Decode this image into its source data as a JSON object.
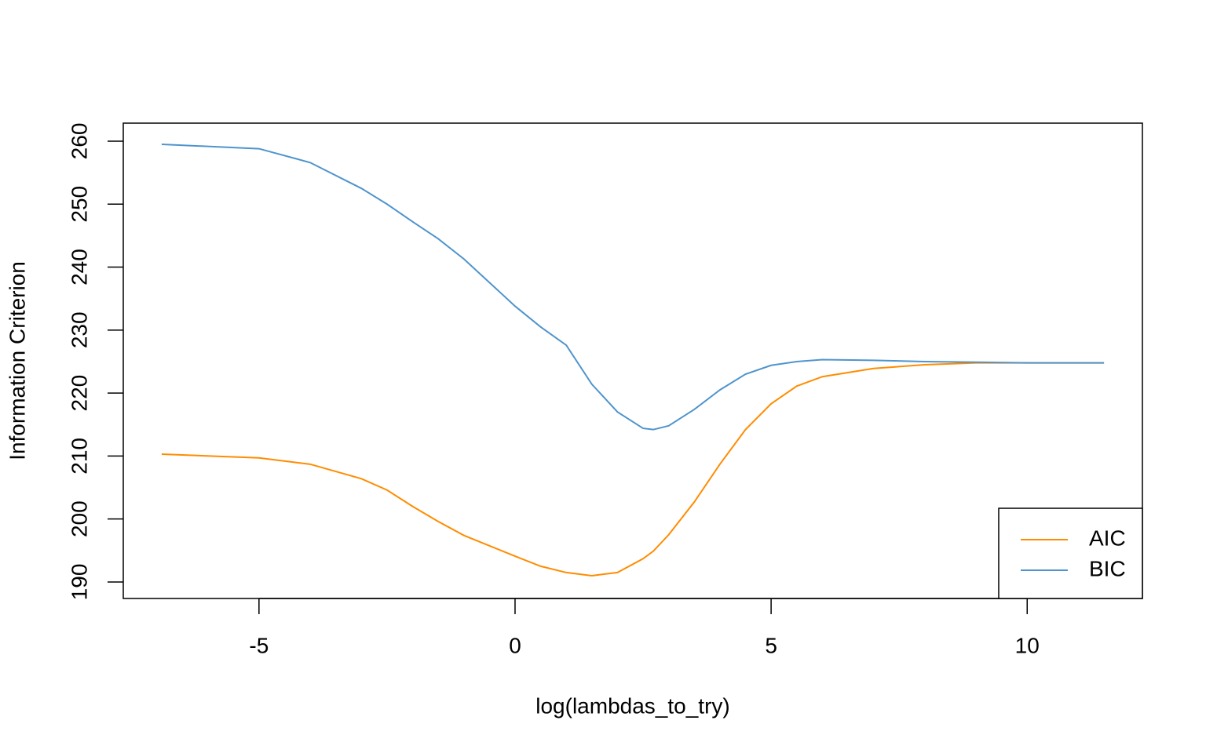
{
  "chart_data": {
    "type": "line",
    "x_label": "log(lambdas_to_try)",
    "y_label": "Information Criterion",
    "x": [
      -6.9,
      -5,
      -4,
      -3,
      -2.5,
      -2,
      -1.5,
      -1,
      0,
      0.5,
      1,
      1.5,
      2,
      2.5,
      2.7,
      3,
      3.5,
      4,
      4.5,
      5,
      5.5,
      6,
      7,
      8,
      9,
      10,
      11.5
    ],
    "series": [
      {
        "name": "AIC",
        "color": "#ff8c00",
        "values": [
          210.3,
          209.7,
          208.7,
          206.4,
          204.6,
          202,
          199.6,
          197.4,
          194.1,
          192.5,
          191.5,
          191,
          191.5,
          193.7,
          194.9,
          197.5,
          202.7,
          208.7,
          214.2,
          218.3,
          221.1,
          222.6,
          223.9,
          224.5,
          224.8,
          224.8,
          224.8
        ]
      },
      {
        "name": "BIC",
        "color": "#4f94cd",
        "values": [
          259.5,
          258.8,
          256.6,
          252.5,
          250,
          247.2,
          244.5,
          241.3,
          233.8,
          230.5,
          227.6,
          221.4,
          217,
          214.4,
          214.2,
          214.8,
          217.4,
          220.5,
          223,
          224.4,
          225,
          225.3,
          225.2,
          225,
          224.9,
          224.8,
          224.8
        ]
      }
    ],
    "xlim": [
      -7.65,
      12.25
    ],
    "xticks": [
      -5,
      0,
      5,
      10
    ],
    "ylim": [
      187.38,
      262.86
    ],
    "yticks": [
      190,
      200,
      210,
      220,
      230,
      240,
      250,
      260
    ],
    "legend": "bottom-right",
    "grid": false
  }
}
